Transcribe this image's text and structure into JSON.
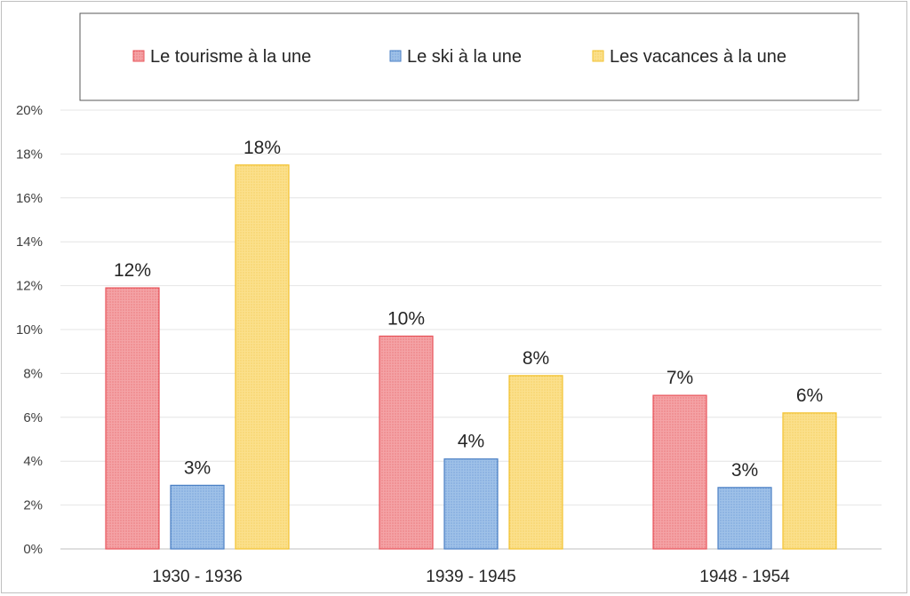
{
  "chart_data": {
    "type": "bar",
    "categories": [
      "1930 - 1936",
      "1939 - 1945",
      "1948 - 1954"
    ],
    "series": [
      {
        "name": "Le tourisme à la une",
        "values": [
          11.9,
          9.7,
          7.0
        ],
        "labels": [
          "12%",
          "10%",
          "7%"
        ],
        "fill": "#f4a3a6",
        "stroke": "#e8535a",
        "dot": "#e25a60"
      },
      {
        "name": "Le ski à la une",
        "values": [
          2.9,
          4.1,
          2.8
        ],
        "labels": [
          "3%",
          "4%",
          "3%"
        ],
        "fill": "#9fc1e8",
        "stroke": "#4a7fc4",
        "dot": "#5b8fd0"
      },
      {
        "name": "Les vacances à la une",
        "values": [
          17.5,
          7.9,
          6.2
        ],
        "labels": [
          "18%",
          "8%",
          "6%"
        ],
        "fill": "#fbe08c",
        "stroke": "#f2c12e",
        "dot": "#efc343"
      }
    ],
    "ylim": [
      0,
      20
    ],
    "yticks": [
      "0%",
      "2%",
      "4%",
      "6%",
      "8%",
      "10%",
      "12%",
      "14%",
      "16%",
      "18%",
      "20%"
    ],
    "grid": true,
    "legend_position": "top"
  }
}
